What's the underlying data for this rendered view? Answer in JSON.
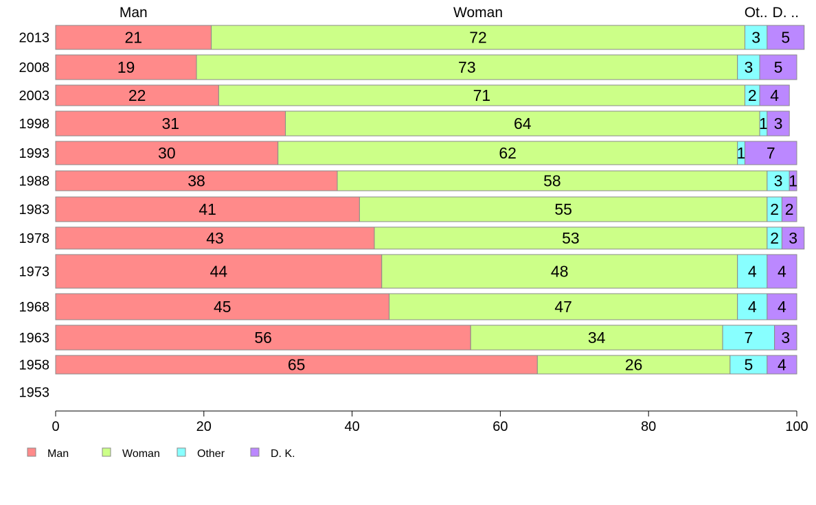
{
  "chart_data": {
    "type": "bar",
    "orientation": "horizontal",
    "stacked": true,
    "categories": [
      "2013",
      "2008",
      "2003",
      "1998",
      "1993",
      "1988",
      "1983",
      "1978",
      "1973",
      "1968",
      "1963",
      "1958",
      "1953"
    ],
    "series": [
      {
        "name": "Man",
        "color": "#ff8a8a",
        "values": [
          21,
          19,
          22,
          31,
          30,
          38,
          41,
          43,
          44,
          45,
          56,
          65,
          null
        ]
      },
      {
        "name": "Woman",
        "color": "#ccff88",
        "values": [
          72,
          73,
          71,
          64,
          62,
          58,
          55,
          53,
          48,
          47,
          34,
          26,
          null
        ]
      },
      {
        "name": "Other",
        "color": "#88ffff",
        "values": [
          3,
          3,
          2,
          1,
          1,
          3,
          2,
          2,
          4,
          4,
          7,
          5,
          null
        ]
      },
      {
        "name": "D. K.",
        "color": "#bb88ff",
        "values": [
          5,
          5,
          4,
          3,
          7,
          1,
          2,
          3,
          4,
          4,
          3,
          4,
          null
        ]
      }
    ],
    "column_headers": [
      "Man",
      "Woman",
      "Ot..",
      "D. .."
    ],
    "xlim": [
      0,
      100
    ],
    "x_ticks": [
      0,
      20,
      40,
      60,
      80,
      100
    ],
    "grid": false,
    "legend_position": "bottom-left",
    "legend": [
      "Man",
      "Woman",
      "Other",
      "D. K."
    ]
  }
}
